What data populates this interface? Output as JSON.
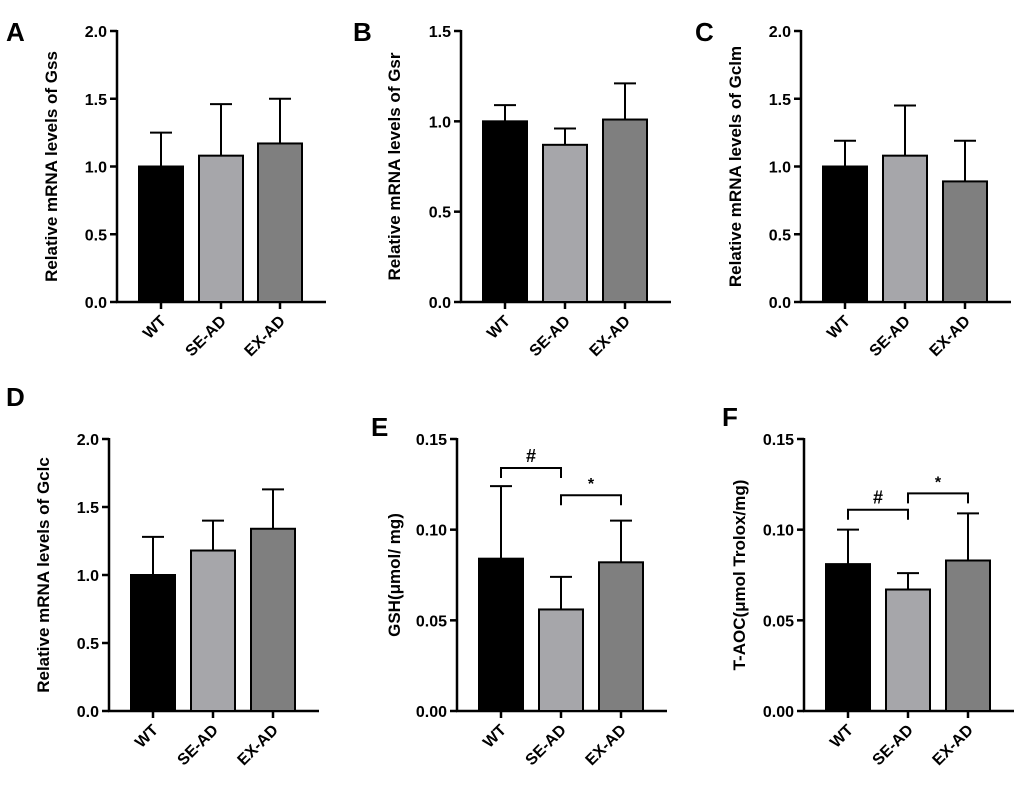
{
  "colors": {
    "WT": "#000000",
    "SE-AD": "#a6a6aa",
    "EX-AD": "#7f7f7f",
    "axis": "#000000"
  },
  "chart_data": [
    {
      "id": "A",
      "type": "bar",
      "letter": "A",
      "categories": [
        "WT",
        "SE-AD",
        "EX-AD"
      ],
      "values": [
        1.0,
        1.08,
        1.17
      ],
      "errors": [
        0.25,
        0.38,
        0.33
      ],
      "ylabel": "Relative mRNA levels of  Gss",
      "ylim": [
        0,
        2.0
      ],
      "yticks": [
        0,
        0.5,
        1.0,
        1.5,
        2.0
      ],
      "ytick_labels": [
        "0.0",
        "0.5",
        "1.0",
        "1.5",
        "2.0"
      ],
      "significance": []
    },
    {
      "id": "B",
      "type": "bar",
      "letter": "B",
      "categories": [
        "WT",
        "SE-AD",
        "EX-AD"
      ],
      "values": [
        1.0,
        0.87,
        1.01
      ],
      "errors": [
        0.09,
        0.09,
        0.2
      ],
      "ylabel": "Relative mRNA levels of  Gsr",
      "ylim": [
        0,
        1.5
      ],
      "yticks": [
        0,
        0.5,
        1.0,
        1.5
      ],
      "ytick_labels": [
        "0.0",
        "0.5",
        "1.0",
        "1.5"
      ],
      "significance": []
    },
    {
      "id": "C",
      "type": "bar",
      "letter": "C",
      "categories": [
        "WT",
        "SE-AD",
        "EX-AD"
      ],
      "values": [
        1.0,
        1.08,
        0.89
      ],
      "errors": [
        0.19,
        0.37,
        0.3
      ],
      "ylabel": "Relative mRNA levels of  Gclm",
      "ylim": [
        0,
        2.0
      ],
      "yticks": [
        0,
        0.5,
        1.0,
        1.5,
        2.0
      ],
      "ytick_labels": [
        "0.0",
        "0.5",
        "1.0",
        "1.5",
        "2.0"
      ],
      "significance": []
    },
    {
      "id": "D",
      "type": "bar",
      "letter": "D",
      "categories": [
        "WT",
        "SE-AD",
        "EX-AD"
      ],
      "values": [
        1.0,
        1.18,
        1.34
      ],
      "errors": [
        0.28,
        0.22,
        0.29
      ],
      "ylabel": "Relative mRNA levels of  Gclc",
      "ylim": [
        0,
        2.0
      ],
      "yticks": [
        0,
        0.5,
        1.0,
        1.5,
        2.0
      ],
      "ytick_labels": [
        "0.0",
        "0.5",
        "1.0",
        "1.5",
        "2.0"
      ],
      "significance": []
    },
    {
      "id": "E",
      "type": "bar",
      "letter": "E",
      "categories": [
        "WT",
        "SE-AD",
        "EX-AD"
      ],
      "values": [
        0.084,
        0.056,
        0.082
      ],
      "errors": [
        0.04,
        0.018,
        0.023
      ],
      "ylabel": "GSH(μmol/ mg)",
      "ylim": [
        0,
        0.15
      ],
      "yticks": [
        0,
        0.05,
        0.1,
        0.15
      ],
      "ytick_labels": [
        "0.00",
        "0.05",
        "0.10",
        "0.15"
      ],
      "significance": [
        {
          "from": 0,
          "to": 1,
          "y": 0.134,
          "label": "#"
        },
        {
          "from": 1,
          "to": 2,
          "y": 0.119,
          "label": "*"
        }
      ]
    },
    {
      "id": "F",
      "type": "bar",
      "letter": "F",
      "categories": [
        "WT",
        "SE-AD",
        "EX-AD"
      ],
      "values": [
        0.081,
        0.067,
        0.083
      ],
      "errors": [
        0.019,
        0.009,
        0.026
      ],
      "ylabel": "T-AOC(μmol Trolox/mg)",
      "ylim": [
        0,
        0.15
      ],
      "yticks": [
        0,
        0.05,
        0.1,
        0.15
      ],
      "ytick_labels": [
        "0.00",
        "0.05",
        "0.10",
        "0.15"
      ],
      "significance": [
        {
          "from": 0,
          "to": 1,
          "y": 0.111,
          "label": "#"
        },
        {
          "from": 1,
          "to": 2,
          "y": 0.12,
          "label": "*"
        }
      ]
    }
  ]
}
